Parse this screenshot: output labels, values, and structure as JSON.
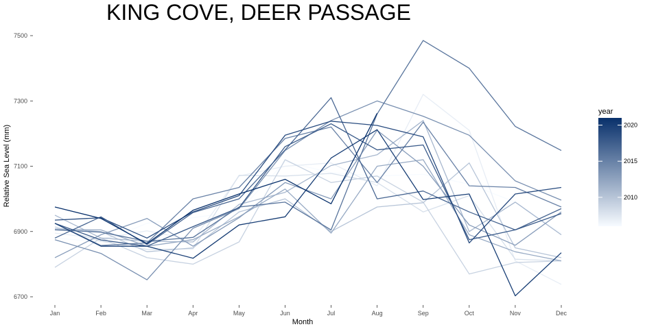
{
  "chart_data": {
    "type": "line",
    "title": "KING COVE, DEER PASSAGE",
    "xlabel": "Month",
    "ylabel": "Relative Sea Level (mm)",
    "categories": [
      "Jan",
      "Feb",
      "Mar",
      "Apr",
      "May",
      "Jun",
      "Jul",
      "Aug",
      "Sep",
      "Oct",
      "Nov",
      "Dec"
    ],
    "ylim": [
      6680,
      7560
    ],
    "yticks": [
      6700,
      6900,
      7100,
      7300,
      7500
    ],
    "grid": false,
    "legend": {
      "title": "year",
      "placement": "right",
      "type": "colorbar",
      "range": [
        2006,
        2021
      ],
      "ticks": [
        2010,
        2015,
        2020
      ],
      "low_color": "#f7fbff",
      "high_color": "#08306b"
    },
    "series": [
      {
        "year": 2006,
        "values": [
          6880,
          6868,
          6925,
          6942,
          6962,
          7114,
          7080,
          7070,
          7075,
          7045,
          6990,
          6895
        ]
      },
      {
        "year": 2007,
        "values": [
          6895,
          6878,
          6902,
          6874,
          7070,
          7100,
          7110,
          7040,
          7320,
          7210,
          6810,
          6738
        ]
      },
      {
        "year": 2008,
        "values": [
          6915,
          6870,
          6845,
          6847,
          7072,
          7070,
          7078,
          7050,
          6960,
          7010,
          6815,
          6810
        ]
      },
      {
        "year": 2009,
        "values": [
          6790,
          6880,
          6820,
          6800,
          6868,
          7120,
          7050,
          7070,
          6990,
          6770,
          6805,
          6810
        ]
      },
      {
        "year": 2010,
        "values": [
          6910,
          6900,
          6838,
          6850,
          6960,
          7000,
          6900,
          6975,
          6988,
          7110,
          6850,
          6820
        ]
      },
      {
        "year": 2011,
        "values": [
          6950,
          6880,
          6870,
          6868,
          6983,
          7020,
          7102,
          7135,
          7240,
          6900,
          6990,
          6890
        ]
      },
      {
        "year": 2012,
        "values": [
          6906,
          6905,
          6855,
          6875,
          6945,
          7030,
          6895,
          7100,
          7120,
          6890,
          6838,
          6810
        ]
      },
      {
        "year": 2013,
        "values": [
          6820,
          6890,
          6940,
          6855,
          6942,
          7050,
          7000,
          7210,
          7100,
          6920,
          6858,
          6960
        ]
      },
      {
        "year": 2014,
        "values": [
          6875,
          6833,
          6752,
          6910,
          6970,
          7148,
          7240,
          7300,
          7253,
          7195,
          7055,
          6996
        ]
      },
      {
        "year": 2015,
        "values": [
          6925,
          6857,
          6865,
          7000,
          7035,
          7185,
          7220,
          7050,
          7235,
          7040,
          7035,
          6975
        ]
      },
      {
        "year": 2016,
        "values": [
          6905,
          6898,
          6870,
          6882,
          6975,
          6990,
          6905,
          7260,
          7485,
          7400,
          7222,
          7148
        ]
      },
      {
        "year": 2017,
        "values": [
          6880,
          6945,
          6860,
          6958,
          7000,
          7150,
          7310,
          7000,
          7024,
          6960,
          6905,
          6970
        ]
      },
      {
        "year": 2018,
        "values": [
          6925,
          6874,
          6855,
          6915,
          6973,
          7160,
          7230,
          7150,
          7165,
          6875,
          6905,
          6955
        ]
      },
      {
        "year": 2019,
        "values": [
          6935,
          6942,
          6880,
          6960,
          7010,
          7195,
          7238,
          7225,
          7190,
          6865,
          7015,
          7035
        ]
      },
      {
        "year": 2020,
        "values": [
          6925,
          6855,
          6855,
          6818,
          6920,
          6945,
          7125,
          7212,
          6998,
          7015,
          6703,
          6835
        ]
      },
      {
        "year": 2021,
        "values": [
          6975,
          6940,
          6863,
          6965,
          7015,
          7060,
          6985,
          7262,
          null,
          null,
          null,
          null
        ]
      }
    ]
  }
}
